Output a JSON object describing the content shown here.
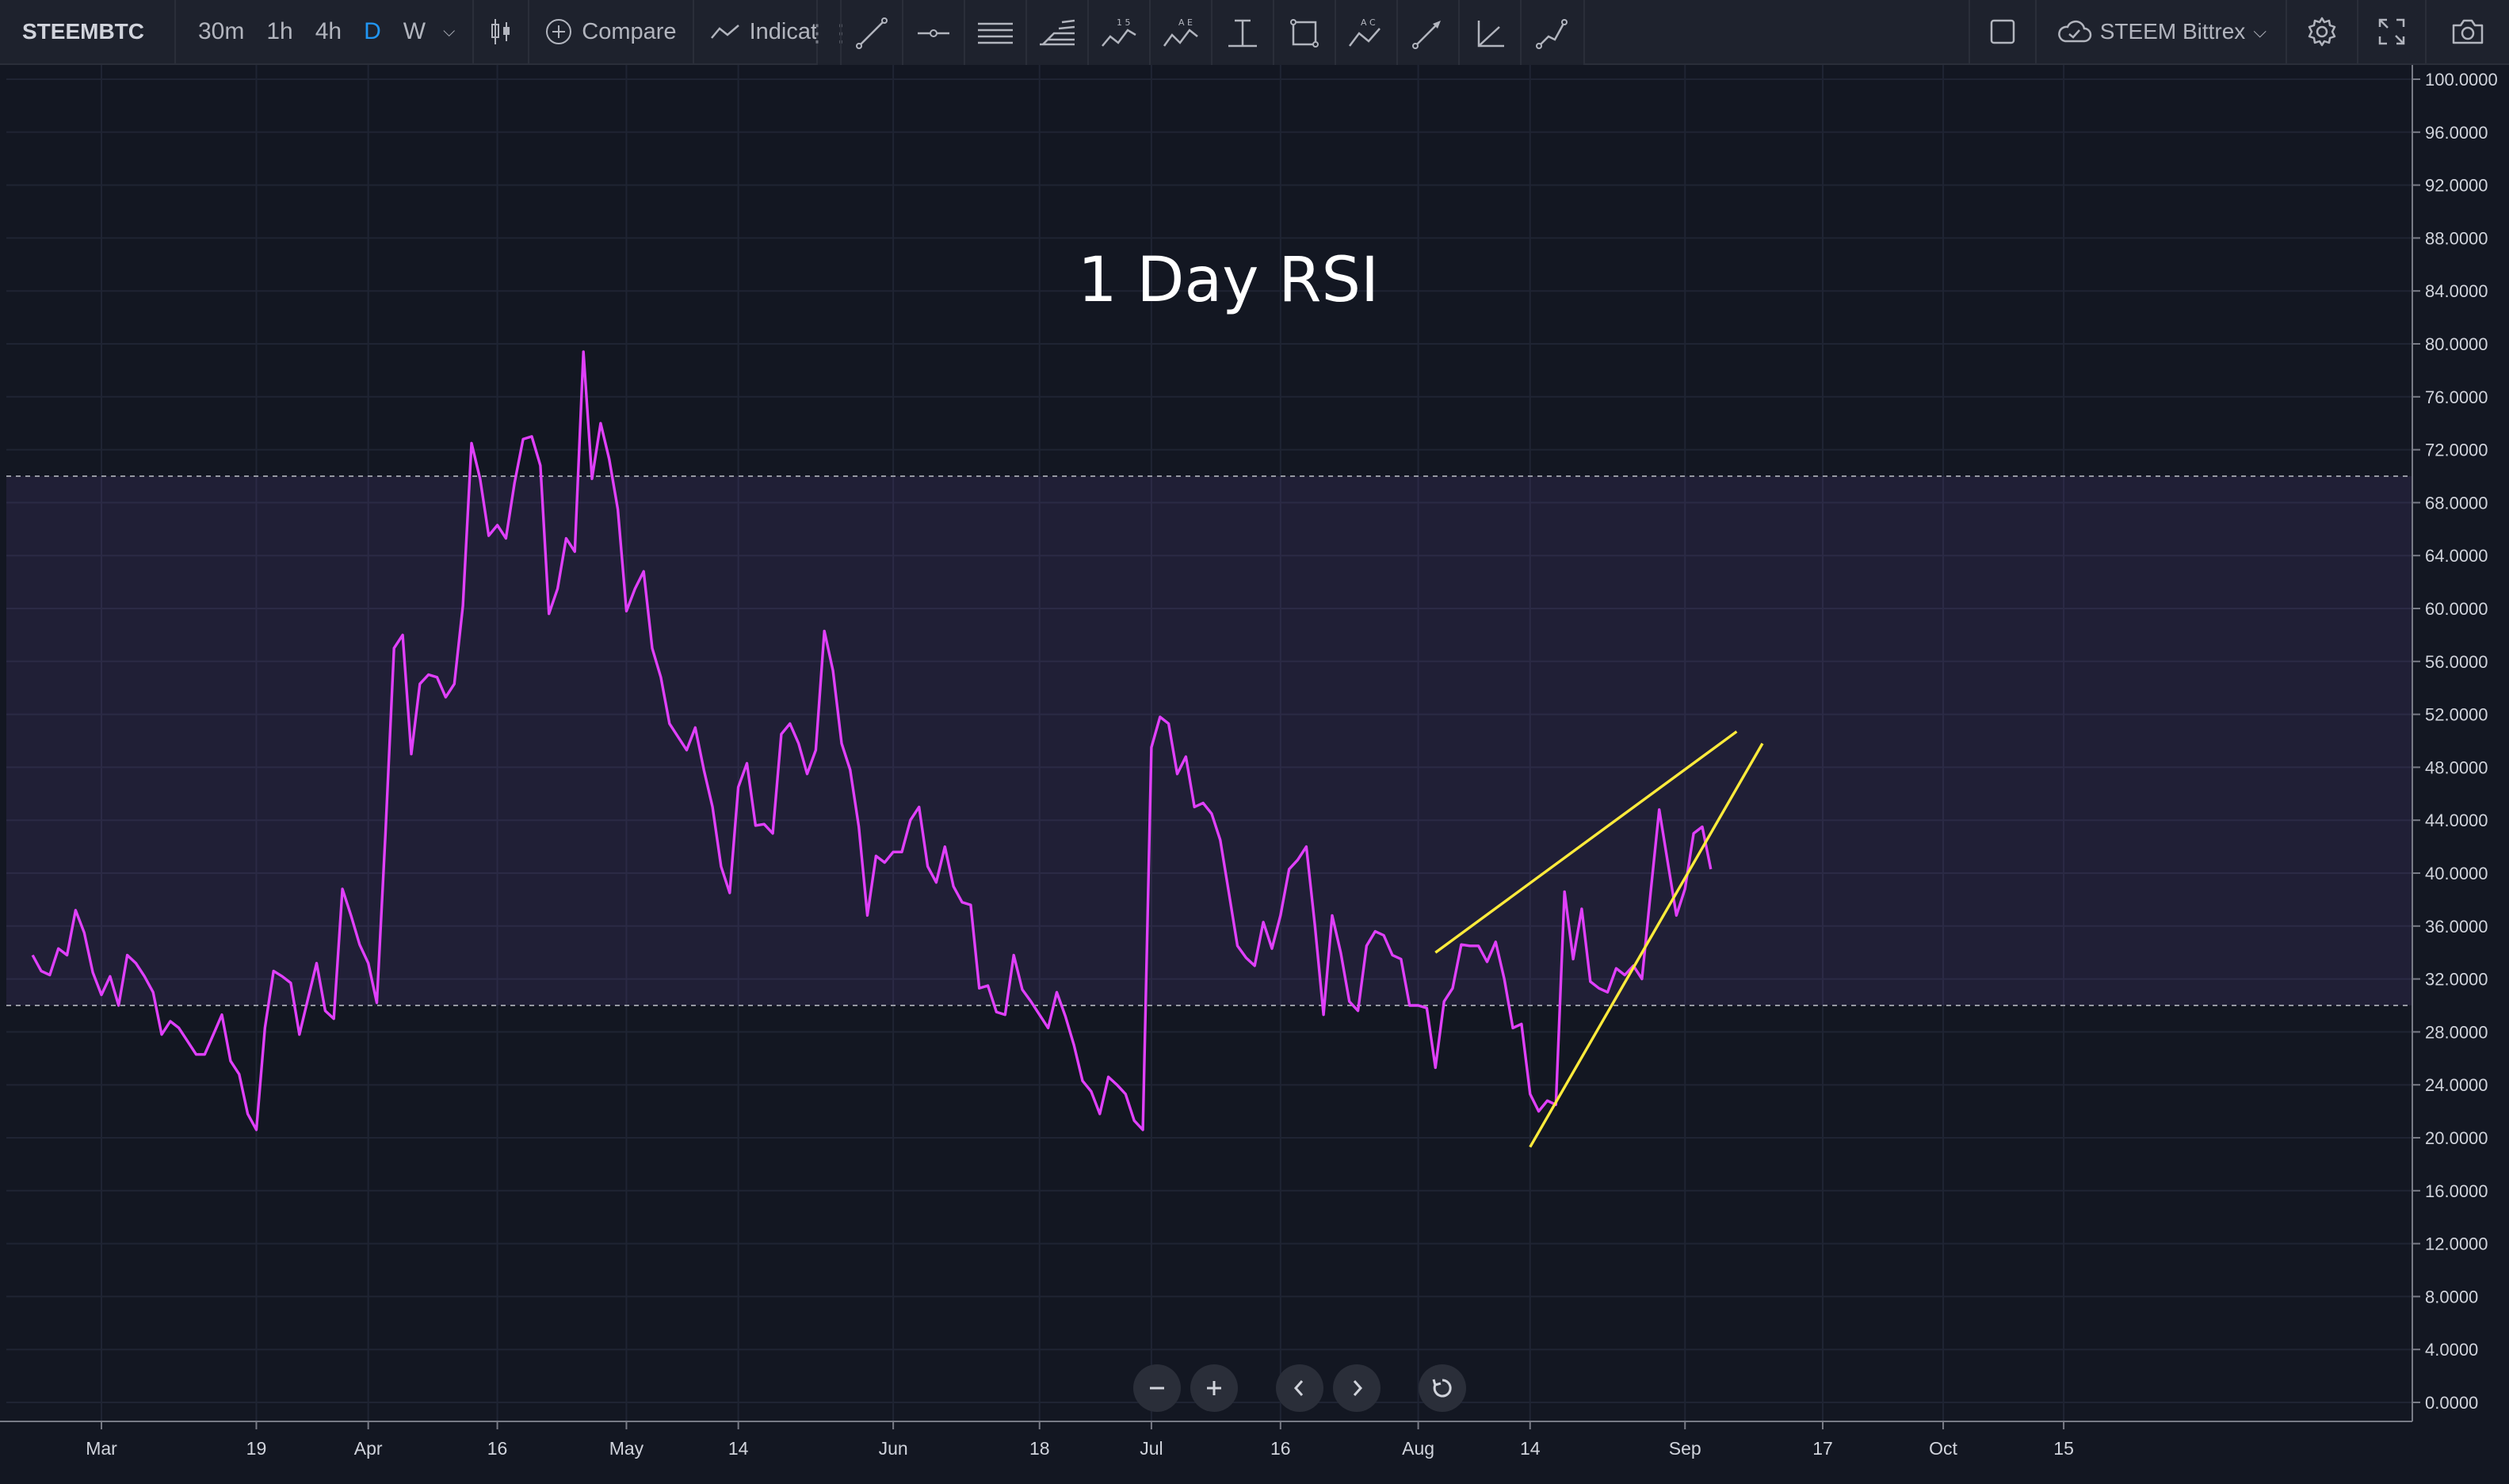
{
  "toolbar": {
    "symbol": "STEEMBTC",
    "intervals": [
      "30m",
      "1h",
      "4h",
      "D",
      "W"
    ],
    "active_interval": "D",
    "compare_label": "Compare",
    "indicators_label": "Indicator",
    "exchange_label": "STEEM Bittrex"
  },
  "drawing_tools": [
    "trend-line-icon",
    "horizontal-line-icon",
    "parallel-channel-icon",
    "pitchfork-icon",
    "abcd-pattern-icon",
    "xabcd-pattern-icon",
    "vertical-measure-icon",
    "rectangle-icon",
    "abc-pattern-icon",
    "arrow-icon",
    "angle-icon",
    "path-icon"
  ],
  "drawing_tool_marks": {
    "abcd": "1 5",
    "xabcd": "A E",
    "abc": "A C"
  },
  "colors": {
    "background": "#131722",
    "rsi_line": "#e040fb",
    "band_fill": "#7e57c2",
    "trendline": "#ffeb3b",
    "grid": "#1f2433",
    "axis_text": "#d1d4dc"
  },
  "chart_data": {
    "type": "line",
    "title": "1 Day RSI",
    "ylim": [
      0,
      100
    ],
    "ylabel": "",
    "xlabel": "",
    "y_ticks": [
      "100.0000",
      "96.0000",
      "92.0000",
      "88.0000",
      "84.0000",
      "80.0000",
      "76.0000",
      "72.0000",
      "68.0000",
      "64.0000",
      "60.0000",
      "56.0000",
      "52.0000",
      "48.0000",
      "44.0000",
      "40.0000",
      "36.0000",
      "32.0000",
      "28.0000",
      "24.0000",
      "20.0000",
      "16.0000",
      "12.0000",
      "8.0000",
      "4.0000",
      "0.0000"
    ],
    "x_ticks": [
      {
        "label": "Mar",
        "date": "2018-03-01"
      },
      {
        "label": "19",
        "date": "2018-03-19"
      },
      {
        "label": "Apr",
        "date": "2018-04-01"
      },
      {
        "label": "16",
        "date": "2018-04-16"
      },
      {
        "label": "May",
        "date": "2018-05-01"
      },
      {
        "label": "14",
        "date": "2018-05-14"
      },
      {
        "label": "Jun",
        "date": "2018-06-01"
      },
      {
        "label": "18",
        "date": "2018-06-18"
      },
      {
        "label": "Jul",
        "date": "2018-07-01"
      },
      {
        "label": "16",
        "date": "2018-07-16"
      },
      {
        "label": "Aug",
        "date": "2018-08-01"
      },
      {
        "label": "14",
        "date": "2018-08-14"
      },
      {
        "label": "Sep",
        "date": "2018-09-01"
      },
      {
        "label": "17",
        "date": "2018-09-17"
      },
      {
        "label": "Oct",
        "date": "2018-10-01"
      },
      {
        "label": "15",
        "date": "2018-10-15"
      }
    ],
    "overbought": 70,
    "oversold": 30,
    "series": [
      {
        "start_date": "2018-02-21",
        "values": [
          33.8,
          32.6,
          32.3,
          34.3,
          33.8,
          37.2,
          35.5,
          32.5,
          30.8,
          32.2,
          30.0,
          33.8,
          33.2,
          32.2,
          31.0,
          27.8,
          28.8,
          28.3,
          27.3,
          26.3,
          26.3,
          27.8,
          29.3,
          25.8,
          24.8,
          21.8,
          20.6,
          28.3,
          32.6,
          32.2,
          31.7,
          27.8,
          30.5,
          33.2,
          29.6,
          29.0,
          38.8,
          36.8,
          34.6,
          33.2,
          30.2,
          43.0,
          57.0,
          58.0,
          49.0,
          54.3,
          55.0,
          54.8,
          53.3,
          54.3,
          60.2,
          72.5,
          69.8,
          65.5,
          66.3,
          65.3,
          69.5,
          72.8,
          73.0,
          70.8,
          59.6,
          61.5,
          65.3,
          64.3,
          79.4,
          69.8,
          74.0,
          71.3,
          67.5,
          59.8,
          61.5,
          62.8,
          57.0,
          54.8,
          51.3,
          50.3,
          49.3,
          51.0,
          47.8,
          45.0,
          40.5,
          38.5,
          46.5,
          48.3,
          43.6,
          43.7,
          43.0,
          50.5,
          51.3,
          49.8,
          47.5,
          49.3,
          58.3,
          55.3,
          49.8,
          47.8,
          43.5,
          36.8,
          41.3,
          40.8,
          41.6,
          41.6,
          44.0,
          45.0,
          40.5,
          39.3,
          42.0,
          39.0,
          37.8,
          37.6,
          31.3,
          31.5,
          29.5,
          29.3,
          33.8,
          31.2,
          30.3,
          29.3,
          28.3,
          31.0,
          29.2,
          27.0,
          24.3,
          23.5,
          21.8,
          24.6,
          24.0,
          23.3,
          21.3,
          20.6,
          49.5,
          51.8,
          51.3,
          47.5,
          48.8,
          45.0,
          45.3,
          44.5,
          42.5,
          38.5,
          34.5,
          33.6,
          33.0,
          36.3,
          34.3,
          36.8,
          40.3,
          41.0,
          42.0,
          36.0,
          29.3,
          36.8,
          34.0,
          30.3,
          29.6,
          34.5,
          35.6,
          35.3,
          33.8,
          33.5,
          30.0,
          30.0,
          29.8,
          25.3,
          30.3,
          31.3,
          34.6,
          34.5,
          34.5,
          33.3,
          34.8,
          32.0,
          28.3,
          28.6,
          23.3,
          22.0,
          22.8,
          22.5,
          38.6,
          33.5,
          37.3,
          31.8,
          31.3,
          31.0,
          32.8,
          32.3,
          33.0,
          32.0,
          38.5,
          44.8,
          40.8,
          36.8,
          38.8,
          43.0,
          43.5,
          40.3
        ]
      }
    ],
    "trendlines": [
      {
        "from": {
          "date": "2018-08-03",
          "value": 34.0
        },
        "to": {
          "date": "2018-09-07",
          "value": 50.7
        }
      },
      {
        "from": {
          "date": "2018-08-14",
          "value": 19.3
        },
        "to": {
          "date": "2018-09-10",
          "value": 49.8
        }
      }
    ]
  }
}
